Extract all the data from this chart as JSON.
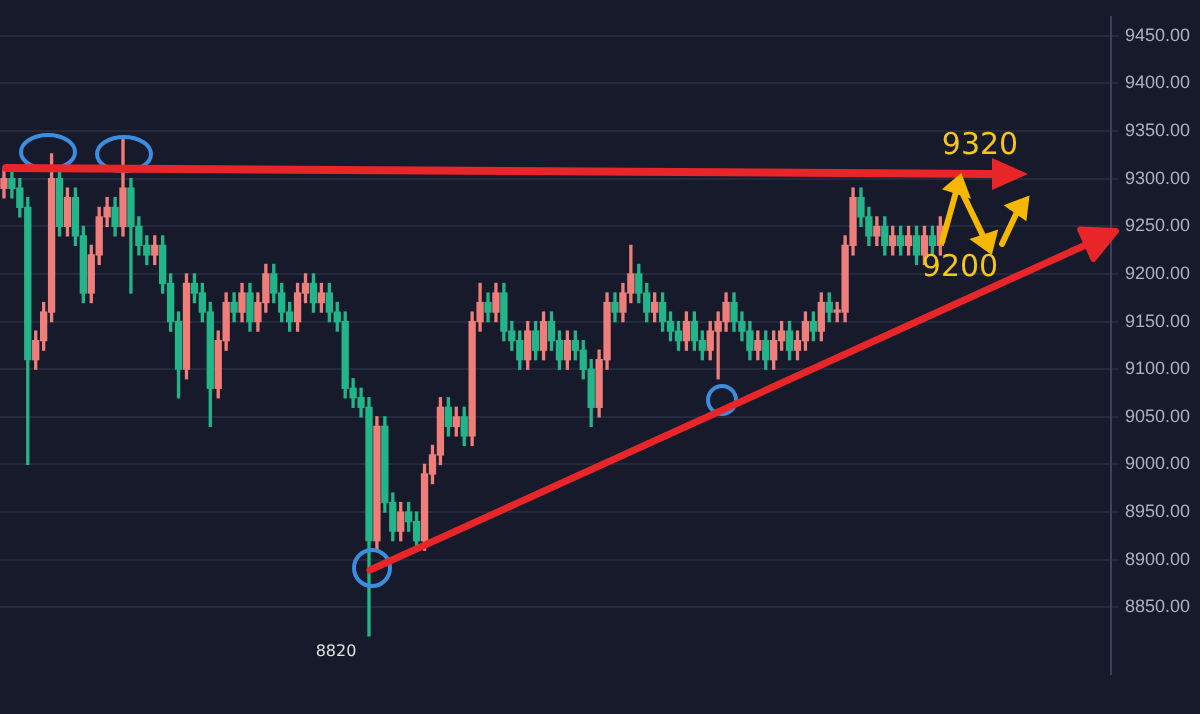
{
  "chart_data": {
    "type": "candlestick",
    "categories": [
      null,
      null,
      null,
      null,
      null,
      null,
      null,
      null,
      null,
      null,
      null,
      null,
      null,
      null,
      null,
      null,
      null,
      null,
      null,
      null,
      null,
      null,
      null,
      null,
      null,
      null,
      null,
      null,
      null,
      null,
      null,
      null,
      null,
      null,
      null,
      null,
      null,
      null,
      null,
      null,
      null,
      null,
      null,
      null,
      null,
      null,
      null,
      null,
      null,
      null,
      null,
      null,
      null,
      null,
      null,
      null,
      null,
      null,
      null,
      null,
      null,
      null,
      null,
      null,
      null,
      null,
      null,
      null,
      null,
      null,
      null,
      null,
      null,
      null,
      null,
      null,
      null,
      null,
      null,
      null,
      null,
      null,
      null,
      null,
      null,
      null,
      null,
      null,
      null,
      null,
      null,
      null,
      null,
      null,
      null,
      null,
      null,
      null,
      null,
      null,
      null,
      null,
      null,
      null,
      null,
      null,
      null,
      null,
      null,
      null,
      null,
      null,
      null,
      null,
      null,
      null,
      null,
      null,
      null,
      null,
      null,
      null,
      null,
      null,
      null,
      null,
      null,
      null,
      null,
      null,
      null,
      null,
      null,
      null,
      null,
      null,
      null,
      null,
      null,
      null
    ],
    "ohlc": [
      [
        9290,
        9310,
        9280,
        9300
      ],
      [
        9300,
        9310,
        9280,
        9290
      ],
      [
        9290,
        9300,
        9260,
        9270
      ],
      [
        9270,
        9280,
        9000,
        9110
      ],
      [
        9110,
        9140,
        9100,
        9130
      ],
      [
        9130,
        9170,
        9120,
        9160
      ],
      [
        9160,
        9326,
        9150,
        9300
      ],
      [
        9300,
        9310,
        9240,
        9250
      ],
      [
        9250,
        9290,
        9240,
        9280
      ],
      [
        9280,
        9290,
        9230,
        9240
      ],
      [
        9240,
        9250,
        9170,
        9180
      ],
      [
        9180,
        9230,
        9170,
        9220
      ],
      [
        9220,
        9270,
        9210,
        9260
      ],
      [
        9260,
        9280,
        9250,
        9270
      ],
      [
        9270,
        9280,
        9240,
        9250
      ],
      [
        9250,
        9344,
        9240,
        9290
      ],
      [
        9290,
        9300,
        9180,
        9250
      ],
      [
        9250,
        9260,
        9220,
        9230
      ],
      [
        9230,
        9240,
        9210,
        9220
      ],
      [
        9220,
        9240,
        9210,
        9230
      ],
      [
        9230,
        9240,
        9180,
        9190
      ],
      [
        9190,
        9200,
        9140,
        9150
      ],
      [
        9150,
        9160,
        9070,
        9100
      ],
      [
        9100,
        9200,
        9090,
        9190
      ],
      [
        9190,
        9200,
        9170,
        9180
      ],
      [
        9180,
        9190,
        9150,
        9160
      ],
      [
        9160,
        9170,
        9040,
        9080
      ],
      [
        9080,
        9140,
        9070,
        9130
      ],
      [
        9130,
        9180,
        9120,
        9170
      ],
      [
        9170,
        9180,
        9150,
        9160
      ],
      [
        9160,
        9190,
        9150,
        9180
      ],
      [
        9180,
        9190,
        9140,
        9150
      ],
      [
        9150,
        9180,
        9140,
        9170
      ],
      [
        9170,
        9210,
        9160,
        9200
      ],
      [
        9200,
        9210,
        9170,
        9180
      ],
      [
        9180,
        9190,
        9150,
        9160
      ],
      [
        9160,
        9170,
        9140,
        9150
      ],
      [
        9150,
        9190,
        9140,
        9180
      ],
      [
        9180,
        9200,
        9170,
        9190
      ],
      [
        9190,
        9200,
        9160,
        9170
      ],
      [
        9170,
        9190,
        9160,
        9180
      ],
      [
        9180,
        9190,
        9150,
        9160
      ],
      [
        9160,
        9170,
        9140,
        9150
      ],
      [
        9150,
        9160,
        9070,
        9080
      ],
      [
        9080,
        9090,
        9060,
        9070
      ],
      [
        9070,
        9080,
        9050,
        9060
      ],
      [
        9060,
        9070,
        8820,
        8920
      ],
      [
        8920,
        9050,
        8910,
        9040
      ],
      [
        9040,
        9050,
        8950,
        8960
      ],
      [
        8960,
        8970,
        8920,
        8930
      ],
      [
        8930,
        8960,
        8920,
        8950
      ],
      [
        8950,
        8960,
        8930,
        8940
      ],
      [
        8940,
        8950,
        8910,
        8920
      ],
      [
        8920,
        9000,
        8910,
        8990
      ],
      [
        8990,
        9020,
        8980,
        9010
      ],
      [
        9010,
        9070,
        9000,
        9060
      ],
      [
        9060,
        9070,
        9030,
        9040
      ],
      [
        9040,
        9060,
        9030,
        9050
      ],
      [
        9050,
        9060,
        9020,
        9030
      ],
      [
        9030,
        9160,
        9020,
        9150
      ],
      [
        9150,
        9190,
        9140,
        9170
      ],
      [
        9170,
        9180,
        9150,
        9160
      ],
      [
        9160,
        9190,
        9150,
        9180
      ],
      [
        9180,
        9190,
        9130,
        9140
      ],
      [
        9140,
        9150,
        9120,
        9130
      ],
      [
        9130,
        9140,
        9100,
        9110
      ],
      [
        9110,
        9150,
        9100,
        9140
      ],
      [
        9140,
        9150,
        9110,
        9120
      ],
      [
        9120,
        9160,
        9110,
        9150
      ],
      [
        9150,
        9160,
        9120,
        9130
      ],
      [
        9130,
        9140,
        9100,
        9110
      ],
      [
        9110,
        9140,
        9100,
        9130
      ],
      [
        9130,
        9140,
        9110,
        9120
      ],
      [
        9120,
        9130,
        9090,
        9100
      ],
      [
        9100,
        9110,
        9040,
        9060
      ],
      [
        9060,
        9120,
        9050,
        9110
      ],
      [
        9110,
        9180,
        9100,
        9170
      ],
      [
        9170,
        9180,
        9150,
        9160
      ],
      [
        9160,
        9190,
        9150,
        9180
      ],
      [
        9180,
        9230,
        9170,
        9200
      ],
      [
        9200,
        9210,
        9170,
        9180
      ],
      [
        9180,
        9190,
        9150,
        9160
      ],
      [
        9160,
        9180,
        9150,
        9170
      ],
      [
        9170,
        9180,
        9140,
        9150
      ],
      [
        9150,
        9160,
        9130,
        9140
      ],
      [
        9140,
        9150,
        9120,
        9130
      ],
      [
        9130,
        9160,
        9120,
        9150
      ],
      [
        9150,
        9160,
        9120,
        9130
      ],
      [
        9130,
        9140,
        9110,
        9120
      ],
      [
        9120,
        9150,
        9110,
        9140
      ],
      [
        9140,
        9160,
        9090,
        9150
      ],
      [
        9150,
        9180,
        9140,
        9170
      ],
      [
        9170,
        9180,
        9140,
        9150
      ],
      [
        9150,
        9160,
        9130,
        9140
      ],
      [
        9140,
        9150,
        9110,
        9120
      ],
      [
        9120,
        9140,
        9110,
        9130
      ],
      [
        9130,
        9140,
        9100,
        9110
      ],
      [
        9110,
        9140,
        9100,
        9130
      ],
      [
        9130,
        9150,
        9120,
        9140
      ],
      [
        9140,
        9150,
        9110,
        9120
      ],
      [
        9120,
        9140,
        9110,
        9130
      ],
      [
        9130,
        9160,
        9120,
        9150
      ],
      [
        9150,
        9160,
        9130,
        9140
      ],
      [
        9140,
        9180,
        9130,
        9170
      ],
      [
        9170,
        9180,
        9150,
        9160
      ],
      [
        9160,
        9170,
        9150,
        9160
      ],
      [
        9160,
        9240,
        9150,
        9230
      ],
      [
        9230,
        9290,
        9220,
        9280
      ],
      [
        9280,
        9290,
        9250,
        9260
      ],
      [
        9260,
        9270,
        9230,
        9240
      ],
      [
        9240,
        9260,
        9230,
        9250
      ],
      [
        9250,
        9260,
        9220,
        9230
      ],
      [
        9230,
        9250,
        9220,
        9240
      ],
      [
        9240,
        9250,
        9220,
        9230
      ],
      [
        9230,
        9250,
        9220,
        9240
      ],
      [
        9240,
        9250,
        9210,
        9220
      ],
      [
        9220,
        9250,
        9210,
        9240
      ],
      [
        9240,
        9250,
        9220,
        9230
      ],
      [
        9230,
        9260,
        9220,
        9250
      ],
      null,
      null,
      null,
      null,
      null,
      null,
      null,
      null,
      null,
      null,
      null,
      null,
      null,
      null,
      null,
      null,
      null,
      null,
      null,
      null,
      null
    ],
    "colors": [
      "#ef7d7a",
      "#22b58a",
      "#22b58a",
      "#22b58a",
      "#ef7d7a",
      "#ef7d7a",
      "#ef7d7a",
      "#22b58a",
      "#ef7d7a",
      "#22b58a",
      "#22b58a",
      "#ef7d7a",
      "#ef7d7a",
      "#ef7d7a",
      "#22b58a",
      "#ef7d7a",
      "#22b58a",
      "#22b58a",
      "#22b58a",
      "#ef7d7a",
      "#22b58a",
      "#22b58a",
      "#22b58a",
      "#ef7d7a",
      "#22b58a",
      "#22b58a",
      "#22b58a",
      "#ef7d7a",
      "#ef7d7a",
      "#22b58a",
      "#ef7d7a",
      "#22b58a",
      "#ef7d7a",
      "#ef7d7a",
      "#22b58a",
      "#22b58a",
      "#22b58a",
      "#ef7d7a",
      "#ef7d7a",
      "#22b58a",
      "#ef7d7a",
      "#22b58a",
      "#22b58a",
      "#22b58a",
      "#22b58a",
      "#22b58a",
      "#22b58a",
      "#ef7d7a",
      "#22b58a",
      "#22b58a",
      "#ef7d7a",
      "#22b58a",
      "#22b58a",
      "#ef7d7a",
      "#ef7d7a",
      "#ef7d7a",
      "#22b58a",
      "#ef7d7a",
      "#22b58a",
      "#ef7d7a",
      "#ef7d7a",
      "#22b58a",
      "#ef7d7a",
      "#22b58a",
      "#22b58a",
      "#22b58a",
      "#ef7d7a",
      "#22b58a",
      "#ef7d7a",
      "#22b58a",
      "#22b58a",
      "#ef7d7a",
      "#22b58a",
      "#22b58a",
      "#22b58a",
      "#ef7d7a",
      "#ef7d7a",
      "#22b58a",
      "#ef7d7a",
      "#ef7d7a",
      "#22b58a",
      "#22b58a",
      "#ef7d7a",
      "#22b58a",
      "#22b58a",
      "#22b58a",
      "#ef7d7a",
      "#22b58a",
      "#22b58a",
      "#ef7d7a",
      "#ef7d7a",
      "#ef7d7a",
      "#22b58a",
      "#22b58a",
      "#22b58a",
      "#ef7d7a",
      "#22b58a",
      "#ef7d7a",
      "#ef7d7a",
      "#22b58a",
      "#ef7d7a",
      "#ef7d7a",
      "#22b58a",
      "#ef7d7a",
      "#22b58a",
      "#ef7d7a",
      "#ef7d7a",
      "#ef7d7a",
      "#22b58a",
      "#22b58a",
      "#ef7d7a",
      "#22b58a",
      "#ef7d7a",
      "#22b58a",
      "#ef7d7a",
      "#22b58a",
      "#ef7d7a",
      "#22b58a",
      "#ef7d7a",
      null,
      null,
      null,
      null,
      null,
      null,
      null,
      null,
      null,
      null,
      null,
      null,
      null,
      null,
      null,
      null,
      null,
      null,
      null,
      null,
      null
    ],
    "ylim": [
      8780,
      9470
    ],
    "yticks": [
      {
        "value": 8850,
        "label": "8850.00"
      },
      {
        "value": 8900,
        "label": "8900.00"
      },
      {
        "value": 8950,
        "label": "8950.00"
      },
      {
        "value": 9000,
        "label": "9000.00"
      },
      {
        "value": 9050,
        "label": "9050.00"
      },
      {
        "value": 9100,
        "label": "9100.00"
      },
      {
        "value": 9150,
        "label": "9150.00"
      },
      {
        "value": 9200,
        "label": "9200.00"
      },
      {
        "value": 9250,
        "label": "9250.00"
      },
      {
        "value": 9300,
        "label": "9300.00"
      },
      {
        "value": 9350,
        "label": "9350.00"
      },
      {
        "value": 9400,
        "label": "9400.00"
      },
      {
        "value": 9450,
        "label": "9450.00"
      }
    ],
    "annotations": [
      "9320",
      "9200",
      "8820"
    ],
    "grid": "y",
    "legend": false,
    "tick_labels": "y"
  }
}
